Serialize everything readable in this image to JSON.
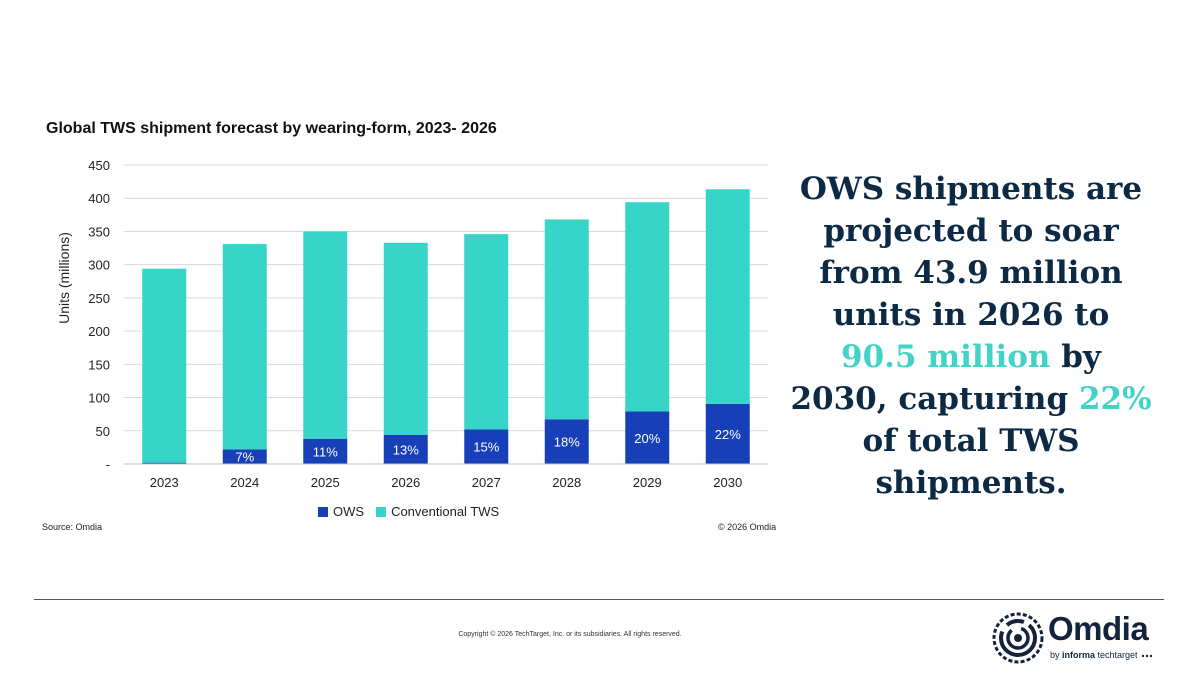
{
  "chart_data": {
    "type": "bar",
    "stacked": true,
    "title": "Global TWS shipment forecast by wearing-form, 2023- 2026",
    "ylabel": "Units (millions)",
    "xlabel": "",
    "ylim": [
      0,
      450
    ],
    "yticks": [
      0,
      50,
      100,
      150,
      200,
      250,
      300,
      350,
      400,
      450
    ],
    "ytick_labels": [
      "-",
      "50",
      "100",
      "150",
      "200",
      "250",
      "300",
      "350",
      "400",
      "450"
    ],
    "grid": true,
    "legend_position": "bottom",
    "categories": [
      "2023",
      "2024",
      "2025",
      "2026",
      "2027",
      "2028",
      "2029",
      "2030"
    ],
    "series": [
      {
        "name": "OWS",
        "color": "#1740b8",
        "values": [
          2,
          22,
          38,
          43.9,
          52,
          67,
          79,
          90.5
        ],
        "data_labels": [
          "",
          "7%",
          "11%",
          "13%",
          "15%",
          "18%",
          "20%",
          "22%"
        ]
      },
      {
        "name": "Conventional TWS",
        "color": "#36d5c7",
        "values": [
          292,
          309,
          312,
          289,
          294,
          301,
          315,
          323
        ]
      }
    ]
  },
  "source": "Source: Omdia",
  "chart_copyright": "© 2026 Omdia",
  "headline": {
    "part1": "OWS shipments are projected to soar from 43.9 million units in 2026 to ",
    "highlight1": "90.5 million",
    "part2": " by 2030, capturing ",
    "highlight2": "22%",
    "part3": " of total TWS shipments."
  },
  "footer": {
    "copyright": "Copyright © 2026 TechTarget, Inc. or its subsidiaries. All rights reserved."
  },
  "logo": {
    "name": "Omdia",
    "sub_prefix": "by ",
    "sub_bold": "informa",
    "sub_suffix": " techtarget"
  }
}
